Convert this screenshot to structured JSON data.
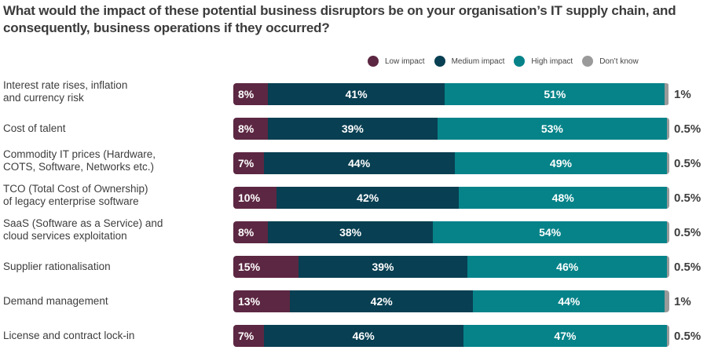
{
  "chart_data": {
    "type": "bar",
    "orientation": "horizontal",
    "stacked": true,
    "title": "What would the impact of these potential business disruptors be on your organisation’s IT supply chain, and consequently, business operations if they occurred?",
    "xlabel": "",
    "ylabel": "",
    "xlim": [
      0,
      100
    ],
    "legend_position": "top-right",
    "categories": [
      [
        "Interest rate rises, inflation",
        "and currency risk"
      ],
      [
        "Cost of talent"
      ],
      [
        "Commodity IT prices (Hardware,",
        "COTS, Software, Networks etc.)"
      ],
      [
        "TCO (Total Cost of Ownership)",
        "of legacy enterprise software"
      ],
      [
        "SaaS (Software as a Service) and",
        "cloud services exploitation"
      ],
      [
        "Supplier rationalisation"
      ],
      [
        "Demand management"
      ],
      [
        "License and contract lock-in"
      ]
    ],
    "series": [
      {
        "name": "Low impact",
        "color": "#5c2742",
        "values": [
          8,
          8,
          7,
          10,
          8,
          15,
          13,
          7
        ],
        "labels": [
          "8%",
          "8%",
          "7%",
          "10%",
          "8%",
          "15%",
          "13%",
          "7%"
        ]
      },
      {
        "name": "Medium impact",
        "color": "#083f52",
        "values": [
          41,
          39,
          44,
          42,
          38,
          39,
          42,
          46
        ],
        "labels": [
          "41%",
          "39%",
          "44%",
          "42%",
          "38%",
          "39%",
          "42%",
          "46%"
        ]
      },
      {
        "name": "High impact",
        "color": "#058389",
        "values": [
          51,
          53,
          49,
          48,
          54,
          46,
          44,
          47
        ],
        "labels": [
          "51%",
          "53%",
          "49%",
          "48%",
          "54%",
          "46%",
          "44%",
          "47%"
        ]
      },
      {
        "name": "Don’t know",
        "color": "#9a9a9a",
        "values": [
          1,
          0.5,
          0.5,
          0.5,
          0.5,
          0.5,
          1,
          0.5
        ],
        "labels": [
          "1%",
          "0.5%",
          "0.5%",
          "0.5%",
          "0.5%",
          "0.5%",
          "1%",
          "0.5%"
        ]
      }
    ]
  }
}
